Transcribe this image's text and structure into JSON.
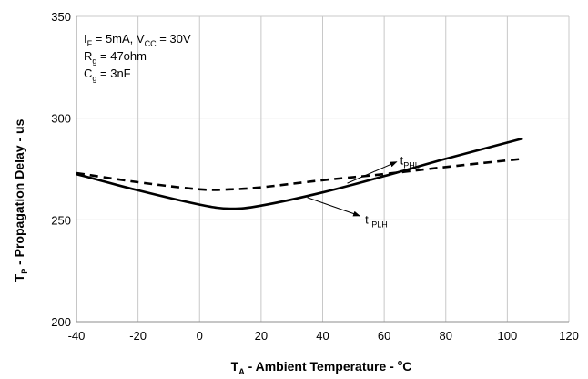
{
  "chart_data": {
    "type": "line",
    "xlabel": {
      "main": "T",
      "sub": "A",
      "rest": " - Ambient Temperature - ",
      "deg": "o",
      "unit": "C"
    },
    "ylabel": {
      "main": "T",
      "sub": "P",
      "rest": " - Propagation Delay - us"
    },
    "xlim": [
      -40,
      120
    ],
    "ylim": [
      200,
      350
    ],
    "xticks": [
      -40,
      -20,
      0,
      20,
      40,
      60,
      80,
      100,
      120
    ],
    "yticks": [
      200,
      250,
      300,
      350
    ],
    "grid": {
      "vertical": true,
      "horizontal": true
    },
    "conditions": [
      {
        "parts": [
          [
            "I",
            ""
          ],
          [
            "F",
            "sub"
          ],
          [
            " = 5mA, V",
            ""
          ],
          [
            "CC",
            "sub"
          ],
          [
            " = 30V",
            ""
          ]
        ]
      },
      {
        "parts": [
          [
            "R",
            ""
          ],
          [
            "g",
            "sub"
          ],
          [
            " = 47ohm",
            ""
          ]
        ]
      },
      {
        "parts": [
          [
            "C",
            ""
          ],
          [
            "g",
            "sub"
          ],
          [
            " = 3nF",
            ""
          ]
        ]
      }
    ],
    "series": [
      {
        "name": "t PLH",
        "label_main": "t",
        "label_sub": "PLH",
        "style": "solid",
        "x": [
          -40,
          -20,
          0,
          10,
          20,
          40,
          60,
          80,
          105
        ],
        "y": [
          272.5,
          264.5,
          257.5,
          255.5,
          257,
          263.5,
          271.5,
          280,
          290
        ]
      },
      {
        "name": "t PHL",
        "label_main": "t",
        "label_sub": "PHL",
        "style": "dashed",
        "x": [
          -40,
          -20,
          0,
          10,
          20,
          40,
          60,
          80,
          105
        ],
        "y": [
          273,
          268.5,
          265,
          265,
          266,
          269.5,
          272.5,
          276,
          280
        ]
      }
    ]
  }
}
